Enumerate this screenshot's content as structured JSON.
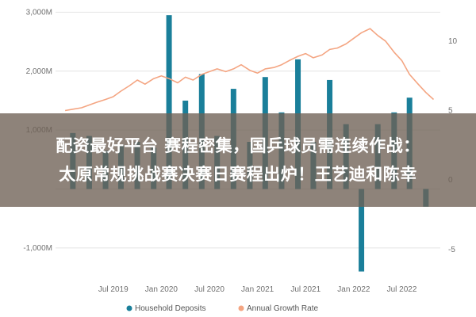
{
  "chart_data": {
    "type": "bar+line",
    "y_left": {
      "ticks": [
        3000,
        2000,
        1000,
        0,
        -1000
      ],
      "tick_labels": [
        "3,000M",
        "2,000M",
        "1,000M",
        "",
        "-1,000M"
      ],
      "range": [
        -1500,
        3100
      ]
    },
    "y_right": {
      "ticks": [
        10,
        5,
        0,
        -5
      ],
      "tick_labels": [
        "10",
        "5",
        "0",
        "-5"
      ],
      "range": [
        -7,
        12.5
      ]
    },
    "x_range": [
      2018.9,
      2022.9
    ],
    "x_ticks": [
      2019.5,
      2020.0,
      2020.5,
      2021.0,
      2021.5,
      2022.0,
      2022.5
    ],
    "x_tick_labels": [
      "Jul 2019",
      "Jan 2020",
      "Jul 2020",
      "Jan 2021",
      "Jul 2021",
      "Jan 2022",
      "Jul 2022"
    ],
    "series": [
      {
        "name": "Household Deposits",
        "axis": "left",
        "color": "#1a7f9a",
        "x": [
          2019.08,
          2019.25,
          2019.42,
          2019.58,
          2019.75,
          2019.92,
          2020.08,
          2020.25,
          2020.42,
          2020.58,
          2020.75,
          2020.92,
          2021.08,
          2021.25,
          2021.42,
          2021.58,
          2021.75,
          2021.92,
          2022.08,
          2022.25,
          2022.42,
          2022.58,
          2022.75
        ],
        "values": [
          950,
          900,
          650,
          750,
          800,
          700,
          2950,
          1500,
          1950,
          900,
          1700,
          800,
          1900,
          1300,
          2200,
          800,
          1850,
          1100,
          -1400,
          1100,
          1300,
          1550,
          -300
        ]
      },
      {
        "name": "Annual Growth Rate",
        "axis": "right",
        "color": "#f4a582",
        "x": [
          2019.0,
          2019.08,
          2019.17,
          2019.25,
          2019.33,
          2019.42,
          2019.5,
          2019.58,
          2019.67,
          2019.75,
          2019.83,
          2019.92,
          2020.0,
          2020.08,
          2020.17,
          2020.25,
          2020.33,
          2020.42,
          2020.5,
          2020.58,
          2020.67,
          2020.75,
          2020.83,
          2020.92,
          2021.0,
          2021.08,
          2021.17,
          2021.25,
          2021.33,
          2021.42,
          2021.5,
          2021.58,
          2021.67,
          2021.75,
          2021.83,
          2021.92,
          2022.0,
          2022.08,
          2022.17,
          2022.25,
          2022.33,
          2022.42,
          2022.5,
          2022.58,
          2022.67,
          2022.75,
          2022.83
        ],
        "values": [
          5.0,
          5.1,
          5.2,
          5.4,
          5.6,
          5.8,
          6.0,
          6.4,
          6.8,
          7.2,
          6.9,
          7.3,
          7.5,
          7.3,
          7.0,
          7.4,
          7.2,
          7.6,
          7.8,
          8.0,
          7.8,
          8.0,
          8.3,
          7.9,
          7.7,
          8.0,
          8.1,
          8.3,
          8.6,
          8.9,
          9.1,
          8.8,
          9.0,
          9.4,
          9.5,
          9.8,
          10.2,
          10.6,
          10.9,
          10.4,
          10.0,
          9.2,
          8.6,
          7.6,
          6.9,
          6.3,
          5.8
        ]
      }
    ],
    "grid": true,
    "legend_position": "bottom"
  },
  "banner": {
    "line1": "配资最好平台 赛程密集，国乒球员需连续作战：",
    "line2": "太原常规挑战赛决赛日赛程出炉！王艺迪和陈幸"
  }
}
